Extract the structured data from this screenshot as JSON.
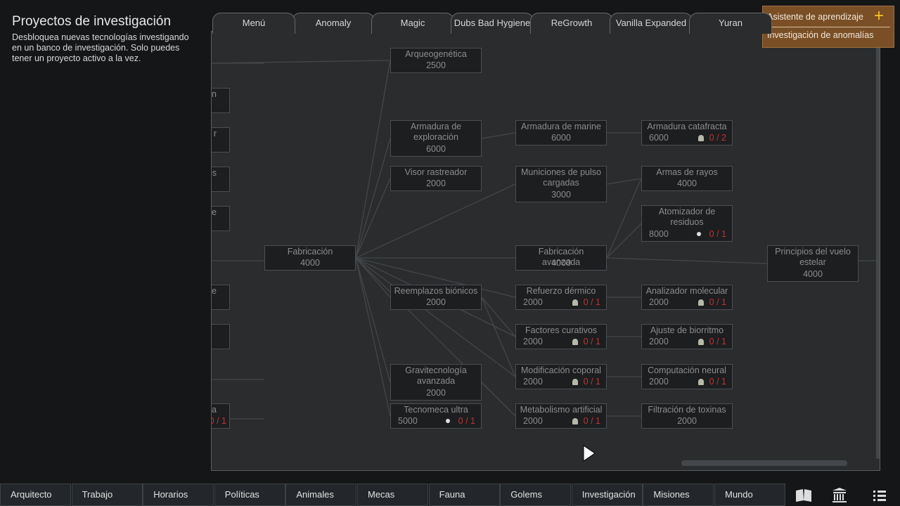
{
  "sidebar": {
    "title": "Proyectos de investigación",
    "description": "Desbloquea nuevas tecnologías investigando en un banco de investigación. Solo puedes tener un proyecto activo a la vez."
  },
  "tabs": [
    "Menú",
    "Anomaly",
    "Magic",
    "Dubs Bad Hygiene",
    "ReGrowth",
    "Vanilla Expanded",
    "Yuran"
  ],
  "tutor": [
    "Asistente de aprendizaje",
    "Investigación de anomalías"
  ],
  "partial_nodes": [
    {
      "label": "on"
    },
    {
      "label": "r"
    },
    {
      "label": "os"
    },
    {
      "label": "e"
    },
    {
      "label": "de"
    },
    {
      "label": "zada",
      "progress": "0 / 1"
    }
  ],
  "nodes": [
    {
      "label": "Fabricación",
      "cost": 4000
    },
    {
      "label": "Arqueogenética",
      "cost": 2500
    },
    {
      "label": "Armadura de exploración",
      "cost": 6000
    },
    {
      "label": "Visor rastreador",
      "cost": 2000
    },
    {
      "label": "Reemplazos biónicos",
      "cost": 2000
    },
    {
      "label": "Gravitecnología avanzada",
      "cost": 2000
    },
    {
      "label": "Tecnomeca ultra",
      "cost": 5000,
      "progress": "0 / 1"
    },
    {
      "label": "Armadura de marine",
      "cost": 6000
    },
    {
      "label": "Municiones de pulso cargadas",
      "cost": 3000
    },
    {
      "label": "Fabricación avanzada",
      "cost": 4000
    },
    {
      "label": "Refuerzo dérmico",
      "cost": 2000,
      "progress": "0 / 1"
    },
    {
      "label": "Factores curativos",
      "cost": 2000,
      "progress": "0 / 1"
    },
    {
      "label": "Modificación coporal",
      "cost": 2000,
      "progress": "0 / 1"
    },
    {
      "label": "Metabolismo artificial",
      "cost": 2000,
      "progress": "0 / 1"
    },
    {
      "label": "Armadura catafracta",
      "cost": 6000,
      "progress": "0 / 2"
    },
    {
      "label": "Armas de rayos",
      "cost": 4000
    },
    {
      "label": "Atomizador de residuos",
      "cost": 8000,
      "progress": "0 / 1"
    },
    {
      "label": "Analizador molecular",
      "cost": 2000,
      "progress": "0 / 1"
    },
    {
      "label": "Ajuste de biorritmo",
      "cost": 2000,
      "progress": "0 / 1"
    },
    {
      "label": "Computación neural",
      "cost": 2000,
      "progress": "0 / 1"
    },
    {
      "label": "Filtración de toxinas",
      "cost": 2000
    },
    {
      "label": "Principios del vuelo estelar",
      "cost": 4000
    }
  ],
  "bottom_tabs": [
    "Arquitecto",
    "Trabajo",
    "Horarios",
    "Políticas",
    "Animales",
    "Mecas",
    "Fauna",
    "Golems",
    "Investigación",
    "Misiones",
    "Mundo"
  ]
}
